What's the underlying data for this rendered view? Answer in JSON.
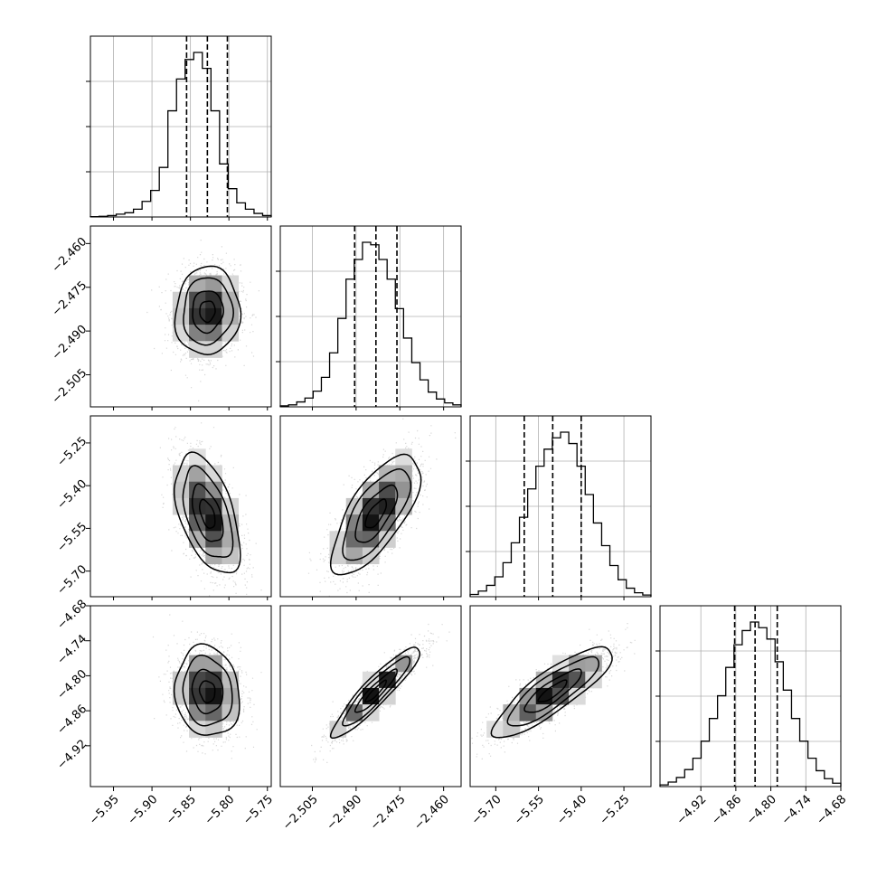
{
  "chart_data": {
    "type": "corner",
    "parameters": [
      {
        "id": "p0",
        "range": [
          -5.98,
          -5.745
        ],
        "ticks": [
          -5.95,
          -5.9,
          -5.85,
          -5.8,
          -5.75
        ],
        "tick_labels": [
          "−5.95",
          "−5.90",
          "−5.85",
          "−5.80",
          "−5.75"
        ],
        "quantiles": [
          -5.855,
          -5.828,
          -5.802
        ],
        "median": -5.828,
        "sigma": 0.02,
        "hist_counts": [
          1,
          2,
          4,
          8,
          12,
          22,
          44,
          75,
          140,
          300,
          390,
          445,
          465,
          420,
          300,
          150,
          80,
          40,
          22,
          10,
          4
        ]
      },
      {
        "id": "p1",
        "range": [
          -2.516,
          -2.454
        ],
        "ticks": [
          -2.505,
          -2.49,
          -2.475,
          -2.46
        ],
        "tick_labels": [
          "−2.505",
          "−2.490",
          "−2.475",
          "−2.460"
        ],
        "quantiles": [
          -2.4905,
          -2.4832,
          -2.476
        ],
        "median": -2.4832,
        "sigma": 0.0072,
        "hist_counts": [
          2,
          4,
          10,
          18,
          32,
          60,
          110,
          180,
          260,
          300,
          335,
          330,
          300,
          260,
          200,
          140,
          90,
          55,
          30,
          16,
          8,
          4
        ]
      },
      {
        "id": "p2",
        "range": [
          -5.79,
          -5.155
        ],
        "ticks": [
          -5.7,
          -5.55,
          -5.4,
          -5.25
        ],
        "tick_labels": [
          "−5.70",
          "−5.55",
          "−5.40",
          "−5.25"
        ],
        "quantiles": [
          -5.6,
          -5.5,
          -5.4
        ],
        "median": -5.5,
        "sigma": 0.1,
        "hist_counts": [
          4,
          10,
          20,
          35,
          60,
          95,
          140,
          190,
          230,
          260,
          280,
          290,
          270,
          230,
          180,
          130,
          90,
          55,
          30,
          15,
          7,
          3
        ]
      },
      {
        "id": "p3",
        "range": [
          -4.99,
          -4.68
        ],
        "ticks": [
          -4.92,
          -4.86,
          -4.8,
          -4.74,
          -4.68
        ],
        "tick_labels": [
          "−4.92",
          "−4.86",
          "−4.80",
          "−4.74",
          "−4.68"
        ],
        "quantiles": [
          -4.862,
          -4.827,
          -4.789
        ],
        "median": -4.827,
        "sigma": 0.037,
        "hist_counts": [
          3,
          8,
          16,
          30,
          50,
          80,
          120,
          160,
          210,
          250,
          275,
          290,
          280,
          260,
          220,
          170,
          120,
          80,
          50,
          28,
          14,
          6
        ]
      }
    ],
    "correlations": {
      "1-0": 0.05,
      "2-0": -0.5,
      "2-1": 0.7,
      "3-0": -0.1,
      "3-1": 0.92,
      "3-2": 0.85
    },
    "title": "",
    "xlabel": "",
    "ylabel": ""
  }
}
